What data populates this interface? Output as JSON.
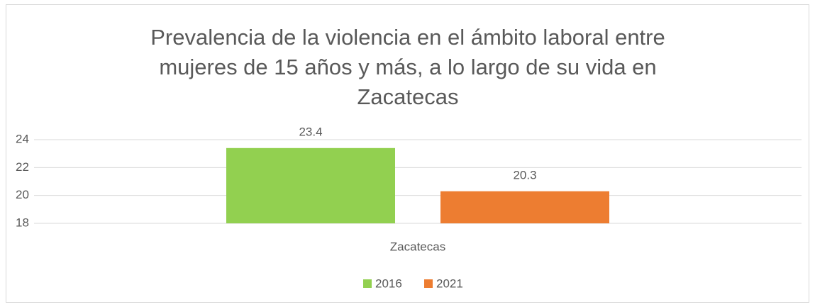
{
  "chart_data": {
    "type": "bar",
    "title": "Prevalencia de la violencia en el ámbito laboral entre mujeres de 15 años y más, a lo largo de su vida en Zacatecas",
    "categories": [
      "Zacatecas"
    ],
    "series": [
      {
        "name": "2016",
        "color": "#92d050",
        "values": [
          23.4
        ]
      },
      {
        "name": "2021",
        "color": "#ed7d31",
        "values": [
          20.3
        ]
      }
    ],
    "ylim": [
      18,
      24
    ],
    "yticks": [
      18,
      20,
      22,
      24
    ],
    "grid": true,
    "legend": "bottom"
  }
}
